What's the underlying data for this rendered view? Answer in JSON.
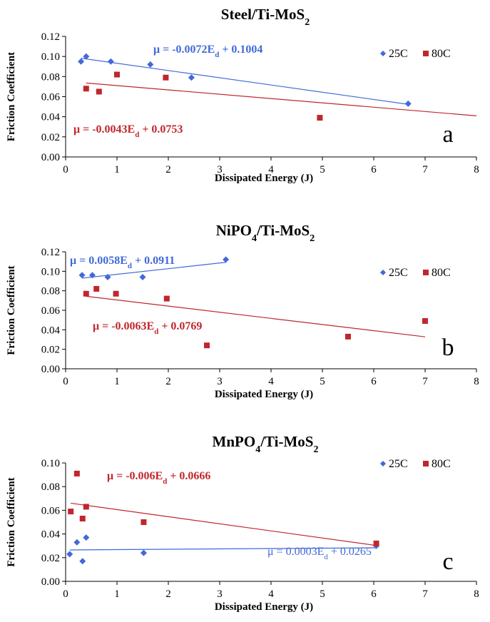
{
  "chart_data": [
    {
      "type": "scatter",
      "title": "Steel/Ti-MoS",
      "title_sub": "2",
      "xlabel": "Dissipated Energy (J)",
      "ylabel": "Friction Coefficient",
      "xlim": [
        0,
        8
      ],
      "ylim": [
        0,
        0.12
      ],
      "xticks": [
        "0",
        "1",
        "2",
        "3",
        "4",
        "5",
        "6",
        "7",
        "8"
      ],
      "yticks": [
        "0.00",
        "0.02",
        "0.04",
        "0.06",
        "0.08",
        "0.10",
        "0.12"
      ],
      "panel_letter": "a",
      "legend": [
        "25C",
        "80C"
      ],
      "legend_position": "top-right",
      "grid": false,
      "series": [
        {
          "name": "25C",
          "color": "#4169d8",
          "marker": "diamond",
          "x": [
            0.3,
            0.4,
            0.88,
            1.65,
            2.45,
            6.67
          ],
          "y": [
            0.095,
            0.1,
            0.095,
            0.092,
            0.079,
            0.053
          ],
          "fit": {
            "slope": -0.0072,
            "intercept": 0.1004,
            "x_range": [
              0.3,
              6.67
            ]
          },
          "equation": {
            "pre": "μ = -0.0072E",
            "sub": "d",
            "post": " + 0.1004",
            "bold": true
          }
        },
        {
          "name": "80C",
          "color": "#c0272d",
          "marker": "square",
          "x": [
            0.4,
            0.65,
            1.0,
            1.95,
            4.95
          ],
          "y": [
            0.068,
            0.065,
            0.082,
            0.079,
            0.039
          ],
          "fit": {
            "slope": -0.0043,
            "intercept": 0.0753,
            "x_range": [
              0.4,
              8.0
            ]
          },
          "equation": {
            "pre": "μ  = -0.0043E",
            "sub": "d",
            "post": " + 0.0753",
            "bold": true
          }
        }
      ]
    },
    {
      "type": "scatter",
      "title": "NiPO",
      "title_mid_sub": "4",
      "title_rest": "/Ti-MoS",
      "title_sub": "2",
      "xlabel": "Dissipated Energy (J)",
      "ylabel": "Friction Coefficient",
      "xlim": [
        0,
        8
      ],
      "ylim": [
        0,
        0.12
      ],
      "xticks": [
        "0",
        "1",
        "2",
        "3",
        "4",
        "5",
        "6",
        "7",
        "8"
      ],
      "yticks": [
        "0.00",
        "0.02",
        "0.04",
        "0.06",
        "0.08",
        "0.10",
        "0.12"
      ],
      "panel_letter": "b",
      "legend": [
        "25C",
        "80C"
      ],
      "legend_position": "top-right",
      "grid": false,
      "series": [
        {
          "name": "25C",
          "color": "#4169d8",
          "marker": "diamond",
          "x": [
            0.32,
            0.52,
            0.82,
            1.5,
            3.12
          ],
          "y": [
            0.096,
            0.096,
            0.094,
            0.094,
            0.112
          ],
          "fit": {
            "slope": 0.0058,
            "intercept": 0.0911,
            "x_range": [
              0.32,
              3.12
            ]
          },
          "equation": {
            "pre": "μ  = 0.0058E",
            "sub": "d",
            "post": " + 0.0911",
            "bold": true
          }
        },
        {
          "name": "80C",
          "color": "#c0272d",
          "marker": "square",
          "x": [
            0.4,
            0.6,
            0.98,
            1.97,
            2.75,
            5.5,
            7.0
          ],
          "y": [
            0.077,
            0.082,
            0.077,
            0.072,
            0.024,
            0.033,
            0.049
          ],
          "fit": {
            "slope": -0.0063,
            "intercept": 0.0769,
            "x_range": [
              0.4,
              7.0
            ]
          },
          "equation": {
            "pre": "μ  = -0.0063E",
            "sub": "d",
            "post": " + 0.0769",
            "bold": true
          }
        }
      ]
    },
    {
      "type": "scatter",
      "title": "MnPO",
      "title_mid_sub": "4",
      "title_rest": "/Ti-MoS",
      "title_sub": "2",
      "xlabel": "Dissipated Energy (J)",
      "ylabel": "Friction Coefficient",
      "xlim": [
        0,
        8
      ],
      "ylim": [
        0,
        0.1
      ],
      "xticks": [
        "0",
        "1",
        "2",
        "3",
        "4",
        "5",
        "6",
        "7",
        "8"
      ],
      "yticks": [
        "0.00",
        "0.02",
        "0.04",
        "0.06",
        "0.08",
        "0.10"
      ],
      "panel_letter": "c",
      "legend": [
        "25C",
        "80C"
      ],
      "legend_position": "top-right",
      "grid": false,
      "series": [
        {
          "name": "25C",
          "color": "#4169d8",
          "marker": "diamond",
          "x": [
            0.08,
            0.22,
            0.33,
            0.4,
            1.52,
            6.05
          ],
          "y": [
            0.023,
            0.033,
            0.017,
            0.037,
            0.024,
            0.03
          ],
          "fit": {
            "slope": 0.0003,
            "intercept": 0.0265,
            "x_range": [
              0.08,
              6.05
            ]
          },
          "equation": {
            "pre": "μ  = 0.0003E",
            "sub": "d",
            "post": " + 0.0265",
            "bold": false
          }
        },
        {
          "name": "80C",
          "color": "#c0272d",
          "marker": "square",
          "x": [
            0.1,
            0.22,
            0.33,
            0.4,
            1.52,
            6.05
          ],
          "y": [
            0.059,
            0.091,
            0.053,
            0.063,
            0.05,
            0.032
          ],
          "fit": {
            "slope": -0.006,
            "intercept": 0.0666,
            "x_range": [
              0.1,
              6.05
            ]
          },
          "equation": {
            "pre": "μ  = -0.006E",
            "sub": "d",
            "post": " + 0.0666",
            "bold": true
          }
        }
      ]
    }
  ]
}
